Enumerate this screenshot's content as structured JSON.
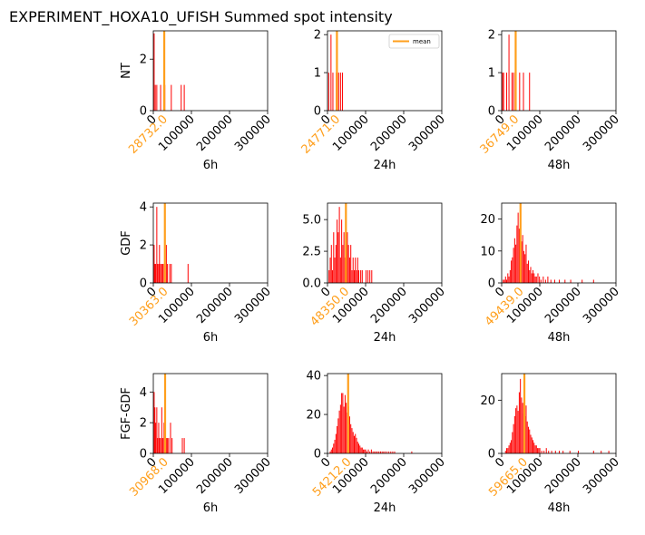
{
  "figure": {
    "title": "EXPERIMENT_HOXA10_UFISH  Summed spot intensity"
  },
  "chart_data": {
    "type": "bar",
    "xlim": [
      0,
      300000
    ],
    "xticks": [
      0,
      100000,
      200000,
      300000
    ],
    "bar_color": "#ff0000",
    "mean_color": "#ff9f1c",
    "legend": {
      "label": "mean",
      "placement": "upper-right",
      "panel": "NT-24h"
    },
    "row_labels": [
      "NT",
      "GDF",
      "FGF-GDF"
    ],
    "col_labels": [
      "6h",
      "24h",
      "48h"
    ],
    "panels": [
      {
        "row": "NT",
        "col": "6h",
        "ylim": [
          0,
          3.1
        ],
        "yticks": [
          0,
          2
        ],
        "mean": 28732.0,
        "mean_label": "28732.0",
        "bins": [
          [
            1000,
            3
          ],
          [
            4000,
            1
          ],
          [
            8000,
            1
          ],
          [
            18000,
            1
          ],
          [
            26000,
            1
          ],
          [
            29000,
            1
          ],
          [
            46000,
            1
          ],
          [
            72000,
            1
          ],
          [
            80000,
            1
          ]
        ]
      },
      {
        "row": "NT",
        "col": "24h",
        "ylim": [
          0,
          2.1
        ],
        "yticks": [
          0,
          1,
          2
        ],
        "mean": 24771.0,
        "mean_label": "24771.0",
        "bins": [
          [
            2000,
            1
          ],
          [
            8000,
            2
          ],
          [
            13000,
            1
          ],
          [
            22000,
            1
          ],
          [
            28000,
            1
          ],
          [
            33000,
            1
          ],
          [
            38000,
            1
          ]
        ]
      },
      {
        "row": "NT",
        "col": "48h",
        "ylim": [
          0,
          2.1
        ],
        "yticks": [
          0,
          1,
          2
        ],
        "mean": 36749.0,
        "mean_label": "36749.0",
        "bins": [
          [
            1000,
            1
          ],
          [
            4000,
            1
          ],
          [
            12000,
            1
          ],
          [
            18000,
            2
          ],
          [
            26000,
            1
          ],
          [
            30000,
            1
          ],
          [
            46000,
            1
          ],
          [
            56000,
            1
          ],
          [
            72000,
            1
          ]
        ]
      },
      {
        "row": "GDF",
        "col": "6h",
        "ylim": [
          0,
          4.2
        ],
        "yticks": [
          0,
          2,
          4
        ],
        "mean": 30363.0,
        "mean_label": "30363.0",
        "bins": [
          [
            1000,
            2
          ],
          [
            3000,
            1
          ],
          [
            5000,
            1
          ],
          [
            8000,
            4
          ],
          [
            10000,
            1
          ],
          [
            13000,
            1
          ],
          [
            15000,
            2
          ],
          [
            18000,
            1
          ],
          [
            21000,
            1
          ],
          [
            24000,
            1
          ],
          [
            27000,
            1
          ],
          [
            30000,
            1
          ],
          [
            33000,
            2
          ],
          [
            36000,
            1
          ],
          [
            42000,
            1
          ],
          [
            46000,
            1
          ],
          [
            90000,
            1
          ]
        ]
      },
      {
        "row": "GDF",
        "col": "24h",
        "ylim": [
          0,
          6.3
        ],
        "yticks": [
          0,
          2.5,
          5.0
        ],
        "ytick_labels": [
          "0.0",
          "2.5",
          "5.0"
        ],
        "mean": 48350.0,
        "mean_label": "48350.0",
        "bins": [
          [
            3000,
            1
          ],
          [
            6000,
            2
          ],
          [
            9000,
            3
          ],
          [
            12000,
            1
          ],
          [
            15000,
            4
          ],
          [
            18000,
            2
          ],
          [
            21000,
            3
          ],
          [
            24000,
            5
          ],
          [
            27000,
            4
          ],
          [
            30000,
            6
          ],
          [
            33000,
            2
          ],
          [
            36000,
            5
          ],
          [
            39000,
            3
          ],
          [
            42000,
            4
          ],
          [
            45000,
            2
          ],
          [
            48000,
            3
          ],
          [
            51000,
            4
          ],
          [
            54000,
            3
          ],
          [
            57000,
            2
          ],
          [
            60000,
            3
          ],
          [
            63000,
            1
          ],
          [
            66000,
            2
          ],
          [
            69000,
            1
          ],
          [
            72000,
            2
          ],
          [
            75000,
            1
          ],
          [
            78000,
            2
          ],
          [
            81000,
            1
          ],
          [
            86000,
            1
          ],
          [
            90000,
            1
          ],
          [
            100000,
            1
          ],
          [
            105000,
            1
          ],
          [
            110000,
            1
          ],
          [
            115000,
            1
          ]
        ]
      },
      {
        "row": "GDF",
        "col": "48h",
        "ylim": [
          0,
          25
        ],
        "yticks": [
          0,
          10,
          20
        ],
        "mean": 49439.0,
        "mean_label": "49439.0",
        "bins": [
          [
            3000,
            1
          ],
          [
            6000,
            1
          ],
          [
            9000,
            2
          ],
          [
            12000,
            1
          ],
          [
            15000,
            3
          ],
          [
            18000,
            2
          ],
          [
            21000,
            4
          ],
          [
            24000,
            7
          ],
          [
            27000,
            8
          ],
          [
            30000,
            11
          ],
          [
            33000,
            14
          ],
          [
            36000,
            12
          ],
          [
            39000,
            18
          ],
          [
            42000,
            22
          ],
          [
            45000,
            17
          ],
          [
            48000,
            14
          ],
          [
            51000,
            13
          ],
          [
            54000,
            15
          ],
          [
            57000,
            10
          ],
          [
            60000,
            9
          ],
          [
            63000,
            12
          ],
          [
            66000,
            6
          ],
          [
            69000,
            7
          ],
          [
            72000,
            4
          ],
          [
            75000,
            5
          ],
          [
            78000,
            3
          ],
          [
            81000,
            4
          ],
          [
            84000,
            3
          ],
          [
            87000,
            2
          ],
          [
            90000,
            2
          ],
          [
            94000,
            3
          ],
          [
            98000,
            2
          ],
          [
            102000,
            1
          ],
          [
            108000,
            2
          ],
          [
            114000,
            1
          ],
          [
            120000,
            2
          ],
          [
            128000,
            1
          ],
          [
            138000,
            1
          ],
          [
            150000,
            1
          ],
          [
            165000,
            1
          ],
          [
            180000,
            1
          ],
          [
            210000,
            1
          ],
          [
            240000,
            1
          ]
        ]
      },
      {
        "row": "FGF-GDF",
        "col": "6h",
        "ylim": [
          0,
          5.2
        ],
        "yticks": [
          0,
          2,
          4
        ],
        "mean": 30968.0,
        "mean_label": "30968.0",
        "bins": [
          [
            1000,
            4
          ],
          [
            3000,
            3
          ],
          [
            5000,
            2
          ],
          [
            8000,
            3
          ],
          [
            10000,
            1
          ],
          [
            13000,
            2
          ],
          [
            15000,
            1
          ],
          [
            18000,
            1
          ],
          [
            21000,
            3
          ],
          [
            24000,
            1
          ],
          [
            27000,
            2
          ],
          [
            30000,
            1
          ],
          [
            33000,
            1
          ],
          [
            36000,
            1
          ],
          [
            39000,
            1
          ],
          [
            44000,
            2
          ],
          [
            48000,
            1
          ],
          [
            75000,
            1
          ],
          [
            80000,
            1
          ]
        ]
      },
      {
        "row": "FGF-GDF",
        "col": "24h",
        "ylim": [
          0,
          41
        ],
        "yticks": [
          0,
          20,
          40
        ],
        "mean": 54212.0,
        "mean_label": "54212.0",
        "bins": [
          [
            6000,
            1
          ],
          [
            9000,
            2
          ],
          [
            12000,
            3
          ],
          [
            15000,
            5
          ],
          [
            18000,
            7
          ],
          [
            21000,
            10
          ],
          [
            24000,
            14
          ],
          [
            27000,
            18
          ],
          [
            30000,
            22
          ],
          [
            33000,
            25
          ],
          [
            36000,
            31
          ],
          [
            39000,
            31
          ],
          [
            42000,
            24
          ],
          [
            45000,
            30
          ],
          [
            48000,
            26
          ],
          [
            51000,
            21
          ],
          [
            54000,
            24
          ],
          [
            57000,
            19
          ],
          [
            60000,
            15
          ],
          [
            63000,
            13
          ],
          [
            66000,
            11
          ],
          [
            69000,
            9
          ],
          [
            72000,
            10
          ],
          [
            75000,
            8
          ],
          [
            78000,
            6
          ],
          [
            81000,
            5
          ],
          [
            84000,
            4
          ],
          [
            87000,
            3
          ],
          [
            90000,
            3
          ],
          [
            93000,
            2
          ],
          [
            96000,
            2
          ],
          [
            99000,
            2
          ],
          [
            102000,
            1
          ],
          [
            106000,
            2
          ],
          [
            110000,
            1
          ],
          [
            114000,
            2
          ],
          [
            118000,
            1
          ],
          [
            122000,
            1
          ],
          [
            126000,
            1
          ],
          [
            130000,
            1
          ],
          [
            134000,
            1
          ],
          [
            138000,
            1
          ],
          [
            142000,
            1
          ],
          [
            146000,
            1
          ],
          [
            150000,
            1
          ],
          [
            155000,
            1
          ],
          [
            160000,
            1
          ],
          [
            165000,
            1
          ],
          [
            170000,
            1
          ],
          [
            175000,
            1
          ],
          [
            220000,
            1
          ]
        ]
      },
      {
        "row": "FGF-GDF",
        "col": "48h",
        "ylim": [
          0,
          30
        ],
        "yticks": [
          0,
          20
        ],
        "mean": 59665.0,
        "mean_label": "59665.0",
        "bins": [
          [
            9000,
            1
          ],
          [
            12000,
            2
          ],
          [
            15000,
            2
          ],
          [
            18000,
            3
          ],
          [
            21000,
            4
          ],
          [
            24000,
            5
          ],
          [
            27000,
            8
          ],
          [
            30000,
            11
          ],
          [
            33000,
            14
          ],
          [
            36000,
            17
          ],
          [
            39000,
            18
          ],
          [
            42000,
            16
          ],
          [
            45000,
            23
          ],
          [
            48000,
            28
          ],
          [
            51000,
            21
          ],
          [
            54000,
            19
          ],
          [
            57000,
            15
          ],
          [
            60000,
            14
          ],
          [
            63000,
            18
          ],
          [
            66000,
            12
          ],
          [
            69000,
            10
          ],
          [
            72000,
            9
          ],
          [
            75000,
            7
          ],
          [
            78000,
            6
          ],
          [
            81000,
            5
          ],
          [
            84000,
            4
          ],
          [
            87000,
            3
          ],
          [
            90000,
            3
          ],
          [
            93000,
            2
          ],
          [
            96000,
            2
          ],
          [
            99000,
            2
          ],
          [
            104000,
            1
          ],
          [
            110000,
            1
          ],
          [
            116000,
            2
          ],
          [
            122000,
            1
          ],
          [
            130000,
            1
          ],
          [
            140000,
            1
          ],
          [
            150000,
            1
          ],
          [
            160000,
            1
          ],
          [
            178000,
            1
          ],
          [
            200000,
            1
          ],
          [
            240000,
            1
          ],
          [
            260000,
            1
          ],
          [
            280000,
            1
          ]
        ]
      }
    ]
  }
}
